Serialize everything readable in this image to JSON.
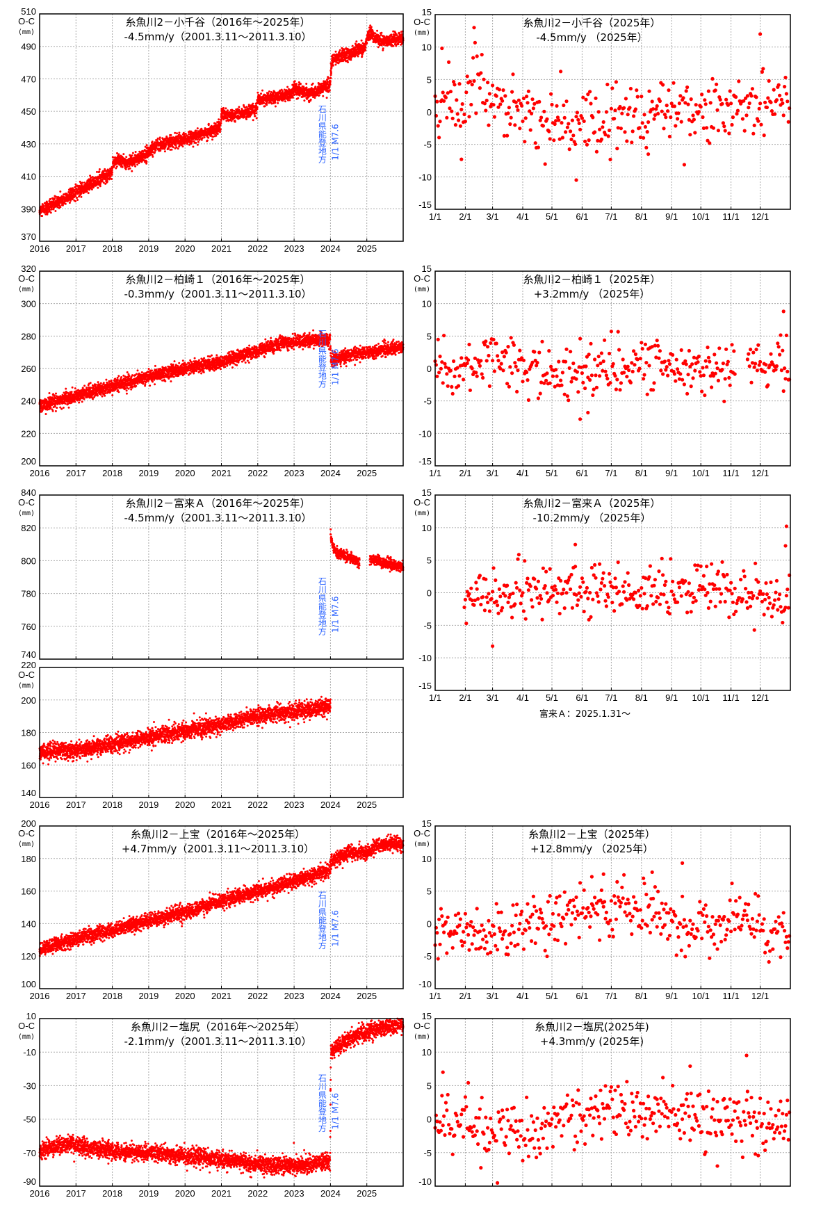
{
  "colors": {
    "point": "#ff0000",
    "annotation": "#2a62ff",
    "grid": "#aaaaaa",
    "frame": "#000000"
  },
  "chart_data": [
    {
      "id": "ojiya-2016-2025",
      "type": "scatter",
      "title": "糸魚川2－小千谷（2016年～2025年）",
      "subtitle": "-4.5mm/y（2001.3.11～2011.3.10）",
      "ylabel": "O-C",
      "yunit": "(mm)",
      "xlim": [
        2016,
        2026
      ],
      "xticks": [
        2016,
        2017,
        2018,
        2019,
        2020,
        2021,
        2022,
        2023,
        2024,
        2025
      ],
      "ylim": [
        370,
        510
      ],
      "yticks": [
        370,
        390,
        410,
        430,
        450,
        470,
        490,
        510
      ],
      "annotation": {
        "text": "石川県能登地方",
        "sub": "1/1 M7.6",
        "x": 2024
      },
      "trend": {
        "x": [
          2016,
          2017,
          2017.95,
          2018.08,
          2018.4,
          2019.0,
          2019.1,
          2020.0,
          2020.98,
          2021.0,
          2021.3,
          2021.97,
          2022.0,
          2022.95,
          2023.0,
          2023.35,
          2023.98,
          2024.0,
          2024.05,
          2024.95,
          2025.05,
          2025.4,
          2026
        ],
        "y": [
          388,
          400,
          412,
          420,
          418,
          424,
          428,
          433,
          440,
          449,
          447,
          451,
          457,
          461,
          465,
          461,
          466,
          470,
          482,
          489,
          498,
          493,
          495
        ]
      },
      "noise_sd": 2,
      "grid": true
    },
    {
      "id": "ojiya-2025",
      "type": "scatter",
      "title": "糸魚川2－小千谷（2025年）",
      "subtitle": "-4.5mm/y （2025年）",
      "ylabel": "O-C",
      "yunit": "(mm)",
      "xlim": [
        0,
        365
      ],
      "xticks": [
        0,
        31,
        59,
        90,
        120,
        151,
        181,
        212,
        243,
        273,
        304,
        334
      ],
      "xtick_labels": [
        "1/1",
        "2/1",
        "3/1",
        "4/1",
        "5/1",
        "6/1",
        "7/1",
        "8/1",
        "9/1",
        "10/1",
        "11/1",
        "12/1"
      ],
      "ylim": [
        -15,
        15
      ],
      "yticks": [
        -15,
        -10,
        -5,
        0,
        5,
        10,
        15
      ],
      "trend": {
        "x": [
          15,
          45,
          74,
          105,
          135,
          166,
          196,
          227,
          258,
          288,
          319,
          349
        ],
        "y": [
          1,
          4,
          1.5,
          -1,
          -2.5,
          -2.5,
          -1,
          0,
          0.5,
          0,
          -0.5,
          2.5
        ]
      },
      "noise_sd": 2.6,
      "outliers": [
        [
          40,
          13
        ],
        [
          334,
          12
        ],
        [
          145,
          -10.5
        ],
        [
          27,
          -7.3
        ],
        [
          7,
          9.8
        ],
        [
          219,
          -6.5
        ]
      ],
      "grid": true
    },
    {
      "id": "kashiwazaki1-2016-2025",
      "type": "scatter",
      "title": "糸魚川2－柏崎１（2016年～2025年）",
      "subtitle": "-0.3mm/y（2001.3.11～2011.3.10）",
      "ylabel": "O-C",
      "yunit": "(mm)",
      "xlim": [
        2016,
        2026
      ],
      "xticks": [
        2016,
        2017,
        2018,
        2019,
        2020,
        2021,
        2022,
        2023,
        2024,
        2025
      ],
      "ylim": [
        200,
        320
      ],
      "yticks": [
        200,
        220,
        240,
        260,
        280,
        300,
        320
      ],
      "annotation": {
        "text": "石川県能登地方",
        "sub": "1/1 M7.6",
        "x": 2024
      },
      "trend": {
        "x": [
          2016,
          2017,
          2018,
          2019,
          2020,
          2021,
          2022,
          2022.7,
          2023.99,
          2024.01,
          2024.5,
          2025,
          2026
        ],
        "y": [
          237,
          243,
          249,
          255,
          260,
          264,
          271,
          276,
          278,
          265,
          268,
          270,
          273
        ]
      },
      "noise_sd": 2,
      "grid": true
    },
    {
      "id": "kashiwazaki1-2025",
      "type": "scatter",
      "title": "糸魚川2－柏崎１（2025年）",
      "subtitle": "+3.2mm/y （2025年）",
      "ylabel": "O-C",
      "yunit": "(mm)",
      "xlim": [
        0,
        365
      ],
      "xticks": [
        0,
        31,
        59,
        90,
        120,
        151,
        181,
        212,
        243,
        273,
        304,
        334
      ],
      "xtick_labels": [
        "1/1",
        "2/1",
        "3/1",
        "4/1",
        "5/1",
        "6/1",
        "7/1",
        "8/1",
        "9/1",
        "10/1",
        "11/1",
        "12/1"
      ],
      "ylim": [
        -15,
        15
      ],
      "yticks": [
        -15,
        -10,
        -5,
        0,
        5,
        10,
        15
      ],
      "trend": {
        "x": [
          15,
          45,
          74,
          105,
          135,
          166,
          196,
          227,
          258,
          288,
          319,
          349
        ],
        "y": [
          0,
          1,
          0.5,
          0,
          -1,
          -1,
          0,
          0.5,
          0.5,
          -0.5,
          0,
          0
        ]
      },
      "noise_sd": 2,
      "gaps": [
        [
          309,
          321
        ]
      ],
      "outliers": [
        [
          358,
          8.8
        ],
        [
          149,
          -7.8
        ],
        [
          157,
          -6.8
        ]
      ],
      "grid": true
    },
    {
      "id": "togi-a-2016-2025-upper",
      "type": "scatter",
      "title": "糸魚川2－富来Ａ（2016年～2025年）",
      "subtitle": "-4.5mm/y（2001.3.11～2011.3.10）",
      "ylabel": "O-C",
      "yunit": "(mm)",
      "xlim": [
        2016,
        2026
      ],
      "xticks": [
        2016,
        2017,
        2018,
        2019,
        2020,
        2021,
        2022,
        2023,
        2024,
        2025
      ],
      "ylim": [
        740,
        840
      ],
      "yticks": [
        740,
        760,
        780,
        800,
        820,
        840
      ],
      "annotation": {
        "text": "石川県能登地方",
        "sub": "1/1 M7.6",
        "x": 2024
      },
      "trend": {
        "x": [
          2024,
          2024.03,
          2024.15,
          2024.5,
          2024.8,
          2025.08,
          2026
        ],
        "y": [
          818,
          811,
          805,
          802,
          799,
          801,
          796
        ]
      },
      "noise_sd": 1.6,
      "gaps": [
        [
          2016,
          2024
        ],
        [
          2024.8,
          2025.08
        ]
      ],
      "grid": true
    },
    {
      "id": "togi-a-2016-2025-lower",
      "type": "scatter",
      "ylabel": "O-C",
      "yunit": "(mm)",
      "xlim": [
        2016,
        2026
      ],
      "xticks": [
        2016,
        2017,
        2018,
        2019,
        2020,
        2021,
        2022,
        2023,
        2024,
        2025
      ],
      "ylim": [
        140,
        220
      ],
      "yticks": [
        140,
        160,
        180,
        200,
        220
      ],
      "trend": {
        "x": [
          2016,
          2017,
          2018,
          2019,
          2020,
          2021,
          2022,
          2023,
          2024
        ],
        "y": [
          168,
          169,
          173,
          177,
          181,
          185,
          190,
          193,
          196
        ]
      },
      "noise_sd": 2.5,
      "gaps": [
        [
          2024,
          2026
        ]
      ],
      "grid": true
    },
    {
      "id": "togi-a-2025",
      "type": "scatter",
      "title": "糸魚川2－富来Ａ（2025年）",
      "subtitle": "-10.2mm/y （2025年）",
      "ylabel": "O-C",
      "yunit": "(mm)",
      "xlim": [
        0,
        365
      ],
      "xticks": [
        0,
        31,
        59,
        90,
        120,
        151,
        181,
        212,
        243,
        273,
        304,
        334
      ],
      "xtick_labels": [
        "1/1",
        "2/1",
        "3/1",
        "4/1",
        "5/1",
        "6/1",
        "7/1",
        "8/1",
        "9/1",
        "10/1",
        "11/1",
        "12/1"
      ],
      "ylim": [
        -15,
        15
      ],
      "yticks": [
        -15,
        -10,
        -5,
        0,
        5,
        10,
        15
      ],
      "trend": {
        "x": [
          15,
          45,
          74,
          105,
          135,
          166,
          196,
          227,
          258,
          288,
          319,
          349
        ],
        "y": [
          0,
          -0.5,
          0.5,
          0.5,
          0.5,
          0.5,
          0,
          0,
          0,
          0.5,
          0,
          -0.5
        ]
      },
      "noise_sd": 2,
      "gaps": [
        [
          0,
          30
        ]
      ],
      "outliers": [
        [
          361,
          10.2
        ],
        [
          360,
          7.2
        ],
        [
          59,
          -8.2
        ],
        [
          144,
          7.4
        ]
      ],
      "note": "富来Ａ：2025.1.31～",
      "grid": true
    },
    {
      "id": "kamitakara-2016-2025",
      "type": "scatter",
      "title": "糸魚川2－上宝（2016年～2025年）",
      "subtitle": "+4.7mm/y（2001.3.11～2011.3.10）",
      "ylabel": "O-C",
      "yunit": "(mm)",
      "xlim": [
        2016,
        2026
      ],
      "xticks": [
        2016,
        2017,
        2018,
        2019,
        2020,
        2021,
        2022,
        2023,
        2024,
        2025
      ],
      "ylim": [
        100,
        200
      ],
      "yticks": [
        100,
        120,
        140,
        160,
        180,
        200
      ],
      "annotation": {
        "text": "石川県能登地方",
        "sub": "1/1 M7.6",
        "x": 2024
      },
      "trend": {
        "x": [
          2016,
          2017,
          2018,
          2019,
          2020,
          2021,
          2022,
          2023,
          2023.99,
          2024.02,
          2024.5,
          2025,
          2025.3,
          2026
        ],
        "y": [
          124,
          131,
          136,
          142,
          147,
          154,
          160,
          166,
          173,
          178,
          184,
          183,
          189,
          189
        ]
      },
      "noise_sd": 2.2,
      "grid": true
    },
    {
      "id": "kamitakara-2025",
      "type": "scatter",
      "title": "糸魚川2－上宝（2025年）",
      "subtitle": "+12.8mm/y （2025年）",
      "ylabel": "O-C",
      "yunit": "(mm)",
      "xlim": [
        0,
        365
      ],
      "xticks": [
        0,
        31,
        59,
        90,
        120,
        151,
        181,
        212,
        243,
        273,
        304,
        334
      ],
      "xtick_labels": [
        "1/1",
        "2/1",
        "3/1",
        "4/1",
        "5/1",
        "6/1",
        "7/1",
        "8/1",
        "9/1",
        "10/1",
        "11/1",
        "12/1"
      ],
      "ylim": [
        -10,
        15
      ],
      "yticks": [
        -10,
        -5,
        0,
        5,
        10,
        15
      ],
      "trend": {
        "x": [
          15,
          45,
          74,
          105,
          135,
          166,
          196,
          227,
          258,
          288,
          319,
          349
        ],
        "y": [
          -1,
          -1.5,
          -1.5,
          0,
          1.5,
          2,
          2,
          1,
          0,
          0,
          0,
          -1.5
        ]
      },
      "noise_sd": 2.2,
      "outliers": [
        [
          254,
          9.3
        ],
        [
          223,
          7.9
        ],
        [
          173,
          7.6
        ],
        [
          161,
          7.2
        ]
      ],
      "grid": true
    },
    {
      "id": "shiojiri-2016-2025",
      "type": "scatter",
      "title": "糸魚川2－塩尻（2016年～2025年）",
      "subtitle": "-2.1mm/y（2001.3.11～2011.3.10）",
      "ylabel": "O-C",
      "yunit": "(mm)",
      "xlim": [
        2016,
        2026
      ],
      "xticks": [
        2016,
        2017,
        2018,
        2019,
        2020,
        2021,
        2022,
        2023,
        2024,
        2025
      ],
      "ylim": [
        -90,
        10
      ],
      "yticks": [
        -90,
        -70,
        -50,
        -30,
        -10,
        10
      ],
      "annotation": {
        "text": "石川県能登地方",
        "sub": "1/1 M7.6",
        "x": 2024
      },
      "trend": {
        "x": [
          2016,
          2016.7,
          2018,
          2019,
          2020,
          2021,
          2022,
          2023,
          2023.99,
          2024.01,
          2024.5,
          2025,
          2026
        ],
        "y": [
          -69,
          -65,
          -69,
          -70,
          -72,
          -74,
          -77,
          -78,
          -75,
          -10,
          -2,
          2,
          7
        ]
      },
      "noise_sd": 2.5,
      "outliers": [
        [
          2024.0,
          -33
        ]
      ],
      "grid": true
    },
    {
      "id": "shiojiri-2025",
      "type": "scatter",
      "title": "糸魚川2－塩尻(2025年)",
      "subtitle": "+4.3mm/y (2025年)",
      "ylabel": "O-C",
      "yunit": "(mm)",
      "xlim": [
        0,
        365
      ],
      "xticks": [
        0,
        31,
        59,
        90,
        120,
        151,
        181,
        212,
        243,
        273,
        304,
        334
      ],
      "ylim": [
        -10,
        15
      ],
      "yticks": [
        -10,
        -5,
        0,
        5,
        10,
        15
      ],
      "trend": {
        "x": [
          15,
          45,
          74,
          105,
          135,
          166,
          196,
          227,
          258,
          288,
          319,
          349
        ],
        "y": [
          0,
          -2,
          -1.5,
          -1,
          0,
          1,
          1.5,
          1.5,
          0,
          -0.5,
          0,
          -0.5
        ]
      },
      "noise_sd": 2.2,
      "outliers": [
        [
          320,
          9.5
        ],
        [
          262,
          7.9
        ],
        [
          8,
          7
        ],
        [
          290,
          -7
        ]
      ],
      "grid": true
    }
  ]
}
